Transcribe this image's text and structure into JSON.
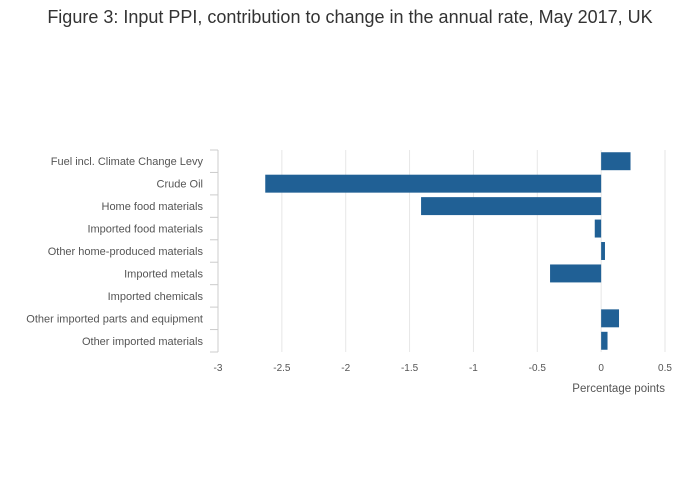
{
  "chart_data": {
    "type": "bar",
    "orientation": "horizontal",
    "title": "Figure 3: Input PPI, contribution to change in the annual rate, May 2017, UK",
    "xlabel": "Percentage points",
    "ylabel": "",
    "categories": [
      "Fuel incl. Climate Change Levy",
      "Crude Oil",
      "Home food materials",
      "Imported food materials",
      "Other home-produced materials",
      "Imported metals",
      "Imported chemicals",
      "Other imported parts and equipment",
      "Other imported materials"
    ],
    "values": [
      0.23,
      -2.63,
      -1.41,
      -0.05,
      0.03,
      -0.4,
      0.0,
      0.14,
      0.05
    ],
    "xlim": [
      -3,
      0.5
    ],
    "xticks": [
      "-3",
      "-2.5",
      "-2",
      "-1.5",
      "-1",
      "-0.5",
      "0",
      "0.5"
    ],
    "grid": true,
    "bar_color": "#206095"
  }
}
